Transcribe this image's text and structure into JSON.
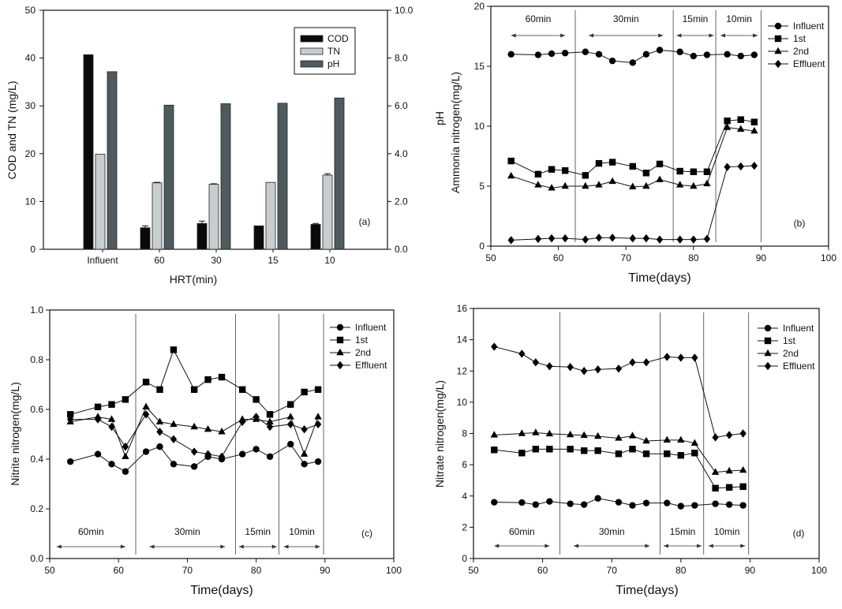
{
  "chart_data": [
    {
      "id": "a",
      "type": "bar",
      "panel_label": "(a)",
      "xlabel": "HRT(min)",
      "ylabel": "COD and TN (mg/L)",
      "ylabel_right": "",
      "categories": [
        "Influent",
        "60",
        "30",
        "15",
        "10"
      ],
      "ylim": [
        0,
        50
      ],
      "yticks": [
        0,
        10,
        20,
        30,
        40,
        50
      ],
      "ylim_right": [
        0,
        10
      ],
      "yticks_right": [
        "0.0",
        "2.0",
        "4.0",
        "6.0",
        "8.0",
        "10.0"
      ],
      "legend_position": "top-right",
      "series": [
        {
          "name": "COD",
          "axis": "left",
          "color": "#0a0a0a",
          "values": [
            40.7,
            4.5,
            5.4,
            4.9,
            5.2
          ],
          "errors": [
            0,
            0.4,
            0.5,
            0,
            0.2
          ]
        },
        {
          "name": "TN",
          "axis": "left",
          "color": "#c8ced0",
          "values": [
            19.9,
            13.9,
            13.6,
            14.0,
            15.5
          ],
          "errors": [
            0,
            0.1,
            0.1,
            0,
            0.3
          ]
        },
        {
          "name": "pH",
          "axis": "right",
          "color": "#4e5a5e",
          "values": [
            7.43,
            6.03,
            6.09,
            6.11,
            6.33
          ],
          "errors": [
            0,
            0,
            0,
            0,
            0
          ]
        }
      ]
    },
    {
      "id": "b",
      "type": "line",
      "panel_label": "(b)",
      "xlabel": "Time(days)",
      "ylabel": "Ammonia nitrogen(mg/L)",
      "ylabel_extra": "pH",
      "xlim": [
        50,
        100
      ],
      "xticks": [
        50,
        60,
        70,
        80,
        90,
        100
      ],
      "ylim": [
        0,
        20
      ],
      "yticks": [
        0,
        5,
        10,
        15,
        20
      ],
      "legend_position": "top-right",
      "x": [
        53,
        57,
        59,
        61,
        64,
        66,
        68,
        71,
        73,
        75,
        78,
        80,
        82,
        85,
        87,
        89
      ],
      "series": [
        {
          "name": "Influent",
          "marker": "circle",
          "values": [
            16.0,
            15.95,
            16.05,
            16.1,
            16.2,
            16.0,
            15.45,
            15.3,
            16.0,
            16.35,
            16.2,
            15.85,
            15.95,
            16.0,
            15.85,
            15.95
          ]
        },
        {
          "name": "1st",
          "marker": "square",
          "values": [
            7.1,
            6.0,
            6.4,
            6.3,
            5.9,
            6.9,
            7.0,
            6.65,
            6.1,
            6.85,
            6.25,
            6.2,
            6.2,
            10.45,
            10.55,
            10.35
          ]
        },
        {
          "name": "2nd",
          "marker": "triangle",
          "values": [
            5.85,
            5.1,
            4.85,
            5.0,
            5.0,
            5.1,
            5.4,
            4.95,
            5.0,
            5.55,
            5.1,
            5.0,
            5.2,
            9.9,
            9.75,
            9.6
          ]
        },
        {
          "name": "Effluent",
          "marker": "diamond",
          "values": [
            0.5,
            0.6,
            0.65,
            0.65,
            0.55,
            0.7,
            0.7,
            0.65,
            0.65,
            0.55,
            0.55,
            0.55,
            0.6,
            6.6,
            6.65,
            6.7
          ]
        }
      ],
      "dividers": [
        62.5,
        77,
        83.3,
        90
      ],
      "periods": [
        {
          "label": "60min",
          "from": 53,
          "to": 61
        },
        {
          "label": "30min",
          "from": 64.5,
          "to": 75.5
        },
        {
          "label": "15min",
          "from": 77.5,
          "to": 83
        },
        {
          "label": "10min",
          "from": 84,
          "to": 89.5
        }
      ],
      "periods_position": "top"
    },
    {
      "id": "c",
      "type": "line",
      "panel_label": "(c)",
      "xlabel": "Time(days)",
      "ylabel": "Nitrite nitrogen(mg/L)",
      "xlim": [
        50,
        100
      ],
      "xticks": [
        50,
        60,
        70,
        80,
        90,
        100
      ],
      "ylim": [
        0,
        1.0
      ],
      "yticks": [
        "0.0",
        "0.2",
        "0.4",
        "0.6",
        "0.8",
        "1.0"
      ],
      "legend_position": "top-right",
      "x": [
        53,
        57,
        59,
        61,
        64,
        66,
        68,
        71,
        73,
        75,
        78,
        80,
        82,
        85,
        87,
        89
      ],
      "series": [
        {
          "name": "Influent",
          "marker": "circle",
          "values": [
            0.39,
            0.42,
            0.38,
            0.35,
            0.43,
            0.45,
            0.38,
            0.37,
            0.41,
            0.4,
            0.42,
            0.44,
            0.41,
            0.46,
            0.38,
            0.39
          ]
        },
        {
          "name": "1st",
          "marker": "square",
          "values": [
            0.58,
            0.61,
            0.62,
            0.64,
            0.71,
            0.68,
            0.84,
            0.68,
            0.72,
            0.73,
            0.68,
            0.64,
            0.58,
            0.62,
            0.67,
            0.68
          ]
        },
        {
          "name": "2nd",
          "marker": "triangle",
          "values": [
            0.55,
            0.57,
            0.56,
            0.41,
            0.61,
            0.55,
            0.54,
            0.53,
            0.52,
            0.51,
            0.56,
            0.56,
            0.55,
            0.57,
            0.42,
            0.57
          ]
        },
        {
          "name": "Effluent",
          "marker": "diamond",
          "values": [
            0.56,
            0.56,
            0.53,
            0.45,
            0.58,
            0.51,
            0.48,
            0.43,
            0.42,
            0.41,
            0.55,
            0.57,
            0.53,
            0.54,
            0.52,
            0.54
          ]
        }
      ],
      "dividers": [
        62.5,
        77,
        83.3,
        89.8
      ],
      "periods": [
        {
          "label": "60min",
          "from": 51,
          "to": 61
        },
        {
          "label": "30min",
          "from": 64.5,
          "to": 75.5
        },
        {
          "label": "15min",
          "from": 77.5,
          "to": 83
        },
        {
          "label": "10min",
          "from": 84,
          "to": 89.3
        }
      ],
      "periods_position": "bottom"
    },
    {
      "id": "d",
      "type": "line",
      "panel_label": "(d)",
      "xlabel": "Time(days)",
      "ylabel": "Nitrate nitrogen(mg/L)",
      "xlim": [
        50,
        100
      ],
      "xticks": [
        50,
        60,
        70,
        80,
        90,
        100
      ],
      "ylim": [
        0,
        16
      ],
      "yticks": [
        0,
        2,
        4,
        6,
        8,
        10,
        12,
        14,
        16
      ],
      "legend_position": "top-right",
      "x": [
        53,
        57,
        59,
        61,
        64,
        66,
        68,
        71,
        73,
        75,
        78,
        80,
        82,
        85,
        87,
        89
      ],
      "series": [
        {
          "name": "Influent",
          "marker": "circle",
          "values": [
            3.6,
            3.58,
            3.45,
            3.65,
            3.5,
            3.45,
            3.85,
            3.6,
            3.4,
            3.55,
            3.55,
            3.35,
            3.4,
            3.5,
            3.45,
            3.4
          ]
        },
        {
          "name": "1st",
          "marker": "square",
          "values": [
            6.95,
            6.75,
            7.0,
            7.0,
            7.0,
            6.9,
            6.9,
            6.7,
            7.0,
            6.7,
            6.7,
            6.6,
            6.75,
            4.5,
            4.55,
            4.6
          ]
        },
        {
          "name": "2nd",
          "marker": "triangle",
          "values": [
            7.9,
            8.0,
            8.05,
            7.98,
            7.92,
            7.88,
            7.82,
            7.7,
            7.85,
            7.52,
            7.58,
            7.58,
            7.38,
            5.52,
            5.6,
            5.65
          ]
        },
        {
          "name": "Effluent",
          "marker": "diamond",
          "values": [
            13.55,
            13.1,
            12.55,
            12.3,
            12.25,
            12.0,
            12.1,
            12.15,
            12.55,
            12.55,
            12.9,
            12.85,
            12.85,
            7.75,
            7.9,
            8.0
          ]
        }
      ],
      "dividers": [
        62.5,
        77,
        83.3,
        89.8
      ],
      "periods": [
        {
          "label": "60min",
          "from": 53,
          "to": 61
        },
        {
          "label": "30min",
          "from": 64.5,
          "to": 75.5
        },
        {
          "label": "15min",
          "from": 77.5,
          "to": 83
        },
        {
          "label": "10min",
          "from": 84,
          "to": 89.3
        }
      ],
      "periods_position": "bottom"
    }
  ]
}
